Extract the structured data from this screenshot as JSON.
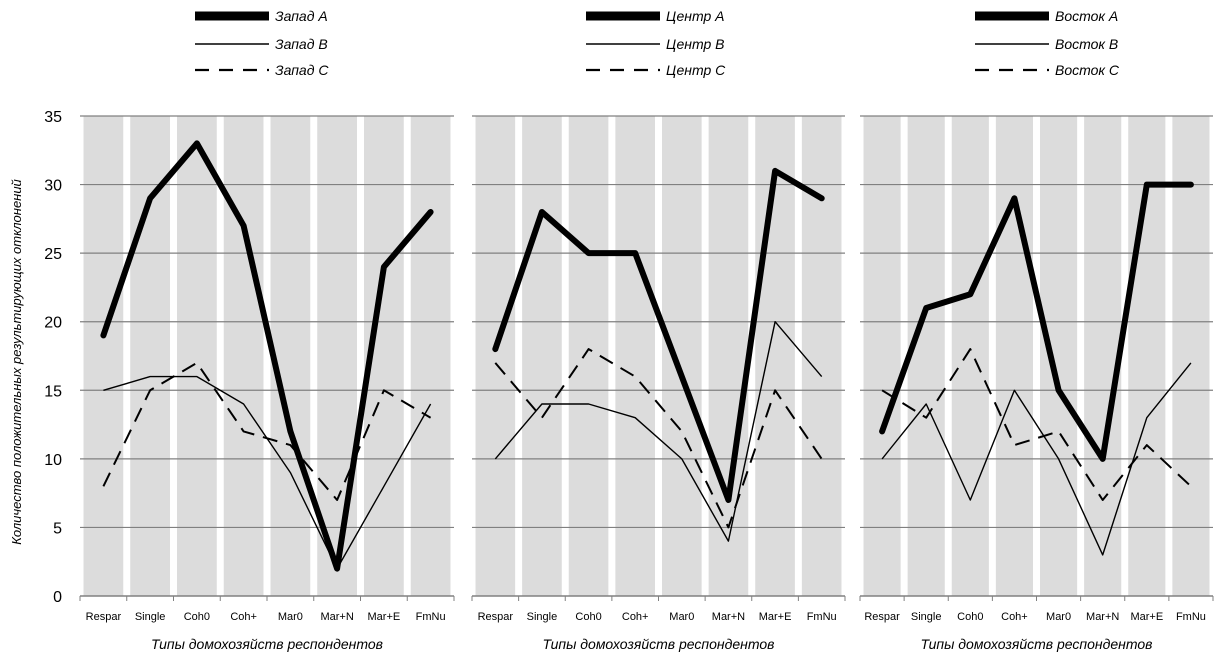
{
  "chart_data": {
    "type": "line",
    "ylabel": "Количество положительных результирующих отклонений",
    "ylim": [
      0,
      35
    ],
    "yticks": [
      "0",
      "5",
      "10",
      "15",
      "20",
      "25",
      "30",
      "35"
    ],
    "grid": "horizontal",
    "legend_position": "top",
    "categories": [
      "Respar",
      "Single",
      "Coh0",
      "Coh+",
      "Mar0",
      "Mar+N",
      "Mar+E",
      "FmNu"
    ],
    "panels": [
      {
        "xlabel": "Типы домохозяйств респондентов",
        "series": [
          {
            "name": "Запад A",
            "style": "thick",
            "values": [
              19,
              29,
              33,
              27,
              12,
              2,
              24,
              28
            ]
          },
          {
            "name": "Запад B",
            "style": "thin",
            "values": [
              15,
              16,
              16,
              14,
              9,
              2,
              8,
              14
            ]
          },
          {
            "name": "Запад C",
            "style": "dashed",
            "values": [
              8,
              15,
              17,
              12,
              11,
              7,
              15,
              13
            ]
          }
        ]
      },
      {
        "xlabel": "Типы домохозяйств респондентов",
        "series": [
          {
            "name": "Центр A",
            "style": "thick",
            "values": [
              18,
              28,
              25,
              25,
              16,
              7,
              31,
              29
            ]
          },
          {
            "name": "Центр B",
            "style": "thin",
            "values": [
              10,
              14,
              14,
              13,
              10,
              4,
              20,
              16
            ]
          },
          {
            "name": "Центр C",
            "style": "dashed",
            "values": [
              17,
              13,
              18,
              16,
              12,
              5,
              15,
              10
            ]
          }
        ]
      },
      {
        "xlabel": "Типы домохозяйств респондентов",
        "series": [
          {
            "name": "Восток A",
            "style": "thick",
            "values": [
              12,
              21,
              22,
              29,
              15,
              10,
              30,
              30
            ]
          },
          {
            "name": "Восток B",
            "style": "thin",
            "values": [
              10,
              14,
              7,
              15,
              10,
              3,
              13,
              17
            ]
          },
          {
            "name": "Восток C",
            "style": "dashed",
            "values": [
              15,
              13,
              18,
              11,
              12,
              7,
              11,
              8
            ]
          }
        ]
      }
    ]
  }
}
